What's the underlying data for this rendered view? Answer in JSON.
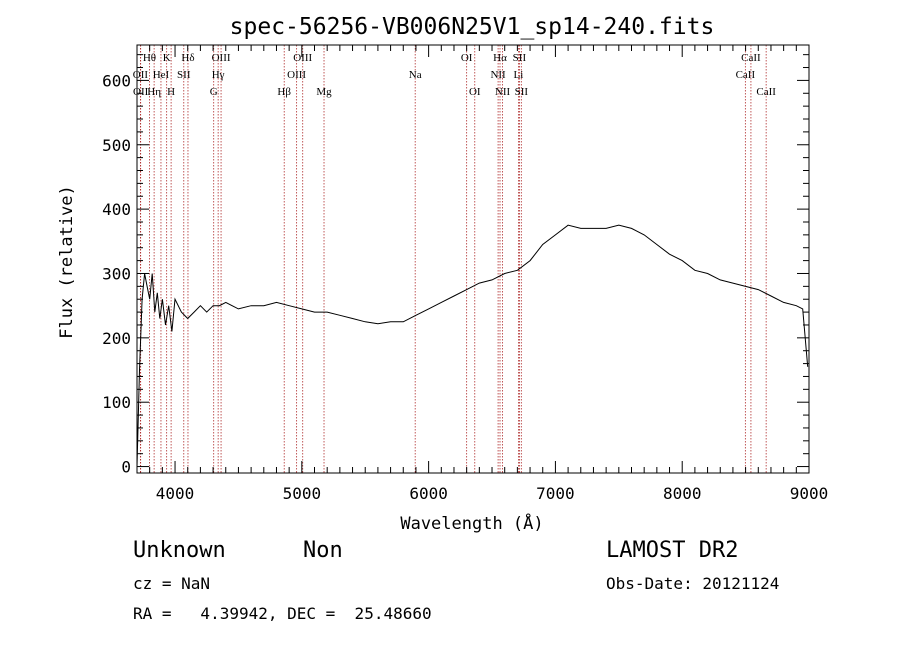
{
  "chart_data": {
    "type": "line",
    "title": "spec-56256-VB006N25V1_sp14-240.fits",
    "xlabel": "Wavelength (Å)",
    "ylabel": "Flux (relative)",
    "xlim": [
      3700,
      9000
    ],
    "ylim": [
      -10,
      655
    ],
    "x_ticks": [
      4000,
      5000,
      6000,
      7000,
      8000,
      9000
    ],
    "y_ticks": [
      0,
      100,
      200,
      300,
      400,
      500,
      600
    ],
    "x_tick_labels": [
      "4000",
      "5000",
      "6000",
      "7000",
      "8000",
      "9000"
    ],
    "y_tick_labels": [
      "0",
      "100",
      "200",
      "300",
      "400",
      "500",
      "600"
    ],
    "grid": false,
    "line_color": "#000000",
    "line_marker_color": "#b03030",
    "series": [
      {
        "x": [
          3700,
          3720,
          3740,
          3760,
          3780,
          3800,
          3820,
          3840,
          3860,
          3880,
          3900,
          3925,
          3950,
          3975,
          4000,
          4050,
          4100,
          4150,
          4200,
          4250,
          4300,
          4350,
          4400,
          4450,
          4500,
          4600,
          4700,
          4800,
          4900,
          5000,
          5100,
          5200,
          5300,
          5400,
          5500,
          5600,
          5700,
          5800,
          5900,
          6000,
          6100,
          6200,
          6300,
          6400,
          6500,
          6600,
          6700,
          6800,
          6900,
          7000,
          7100,
          7200,
          7300,
          7400,
          7500,
          7600,
          7700,
          7800,
          7900,
          8000,
          8100,
          8200,
          8300,
          8400,
          8500,
          8600,
          8700,
          8800,
          8900,
          8950,
          8990
        ],
        "y": [
          0,
          150,
          260,
          300,
          280,
          260,
          300,
          240,
          270,
          230,
          260,
          220,
          250,
          210,
          260,
          240,
          230,
          240,
          250,
          240,
          250,
          250,
          255,
          250,
          245,
          250,
          250,
          255,
          250,
          245,
          240,
          240,
          235,
          230,
          225,
          222,
          225,
          225,
          235,
          245,
          255,
          265,
          275,
          285,
          290,
          300,
          305,
          320,
          345,
          360,
          375,
          370,
          370,
          370,
          375,
          370,
          360,
          345,
          330,
          320,
          305,
          300,
          290,
          285,
          280,
          275,
          265,
          255,
          250,
          245,
          155
        ]
      }
    ],
    "lines": [
      {
        "label": "Hθ",
        "x": 3798,
        "row": 0
      },
      {
        "label": "OII",
        "x": 3727,
        "row": 1
      },
      {
        "label": "OII",
        "x": 3729,
        "row": 2
      },
      {
        "label": "Hη",
        "x": 3835,
        "row": 2
      },
      {
        "label": "HeI",
        "x": 3889,
        "row": 1
      },
      {
        "label": "K",
        "x": 3934,
        "row": 0
      },
      {
        "label": "H",
        "x": 3969,
        "row": 2
      },
      {
        "label": "SII",
        "x": 4069,
        "row": 1
      },
      {
        "label": "Hδ",
        "x": 4102,
        "row": 0
      },
      {
        "label": "OIII",
        "x": 4363,
        "row": 0
      },
      {
        "label": "Hγ",
        "x": 4340,
        "row": 1
      },
      {
        "label": "G",
        "x": 4305,
        "row": 2
      },
      {
        "label": "Hβ",
        "x": 4861,
        "row": 2
      },
      {
        "label": "OIII",
        "x": 5007,
        "row": 0
      },
      {
        "label": "OIII",
        "x": 4959,
        "row": 1
      },
      {
        "label": "Mg",
        "x": 5175,
        "row": 2
      },
      {
        "label": "Na",
        "x": 5894,
        "row": 1
      },
      {
        "label": "OI",
        "x": 6300,
        "row": 0
      },
      {
        "label": "OI",
        "x": 6364,
        "row": 2
      },
      {
        "label": "Hα",
        "x": 6563,
        "row": 0
      },
      {
        "label": "NII",
        "x": 6548,
        "row": 1
      },
      {
        "label": "NII",
        "x": 6583,
        "row": 2
      },
      {
        "label": "SII",
        "x": 6716,
        "row": 0
      },
      {
        "label": "Li",
        "x": 6708,
        "row": 1
      },
      {
        "label": "SII",
        "x": 6731,
        "row": 2
      },
      {
        "label": "CaII",
        "x": 8542,
        "row": 0
      },
      {
        "label": "CaII",
        "x": 8498,
        "row": 1
      },
      {
        "label": "CaII",
        "x": 8662,
        "row": 2
      }
    ]
  },
  "footer": {
    "object": "Unknown",
    "type": "Non",
    "redshift": "cz = NaN",
    "coords": "RA =   4.39942, DEC =  25.48660",
    "survey": "LAMOST DR2",
    "obs_date": "Obs-Date: 20121124"
  }
}
